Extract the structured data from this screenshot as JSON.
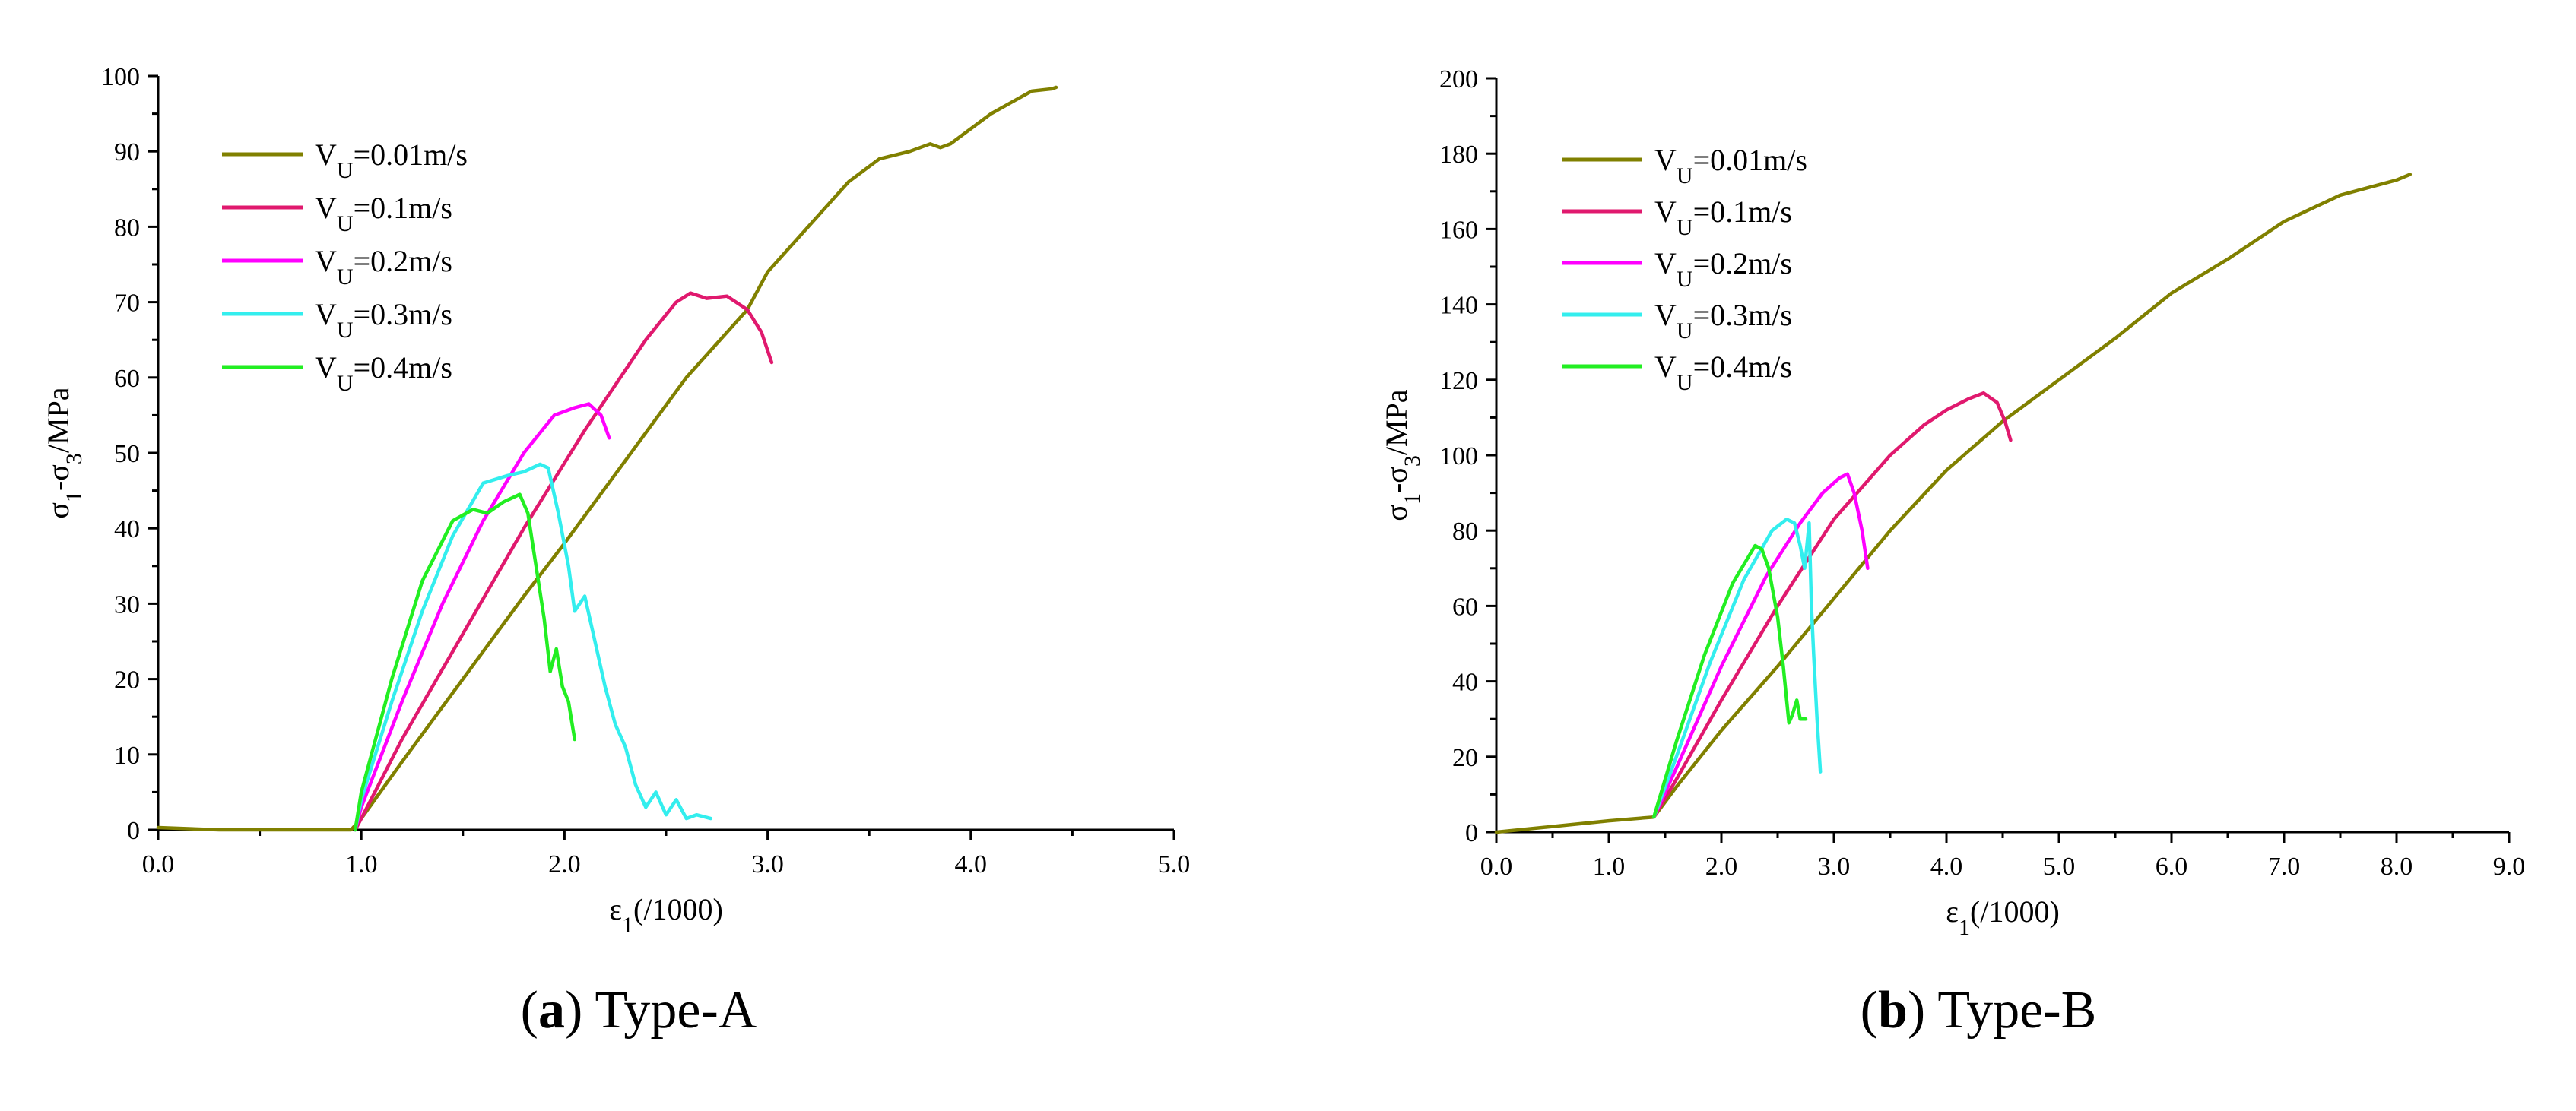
{
  "chart_data": [
    {
      "type": "line",
      "panel_label": "a",
      "panel_title": "Type-A",
      "xlabel_main": "ε",
      "xlabel_sub": "1",
      "xlabel_rest": "(/1000)",
      "ylabel_parts": [
        "σ",
        "1",
        "-σ",
        "3",
        "/MPa"
      ],
      "xlim": [
        0,
        5
      ],
      "ylim": [
        0,
        100
      ],
      "xticks": [
        0,
        1,
        2,
        3,
        4,
        5
      ],
      "xtick_labels": [
        "0.0",
        "1.0",
        "2.0",
        "3.0",
        "4.0",
        "5.0"
      ],
      "yticks": [
        0,
        10,
        20,
        30,
        40,
        50,
        60,
        70,
        80,
        90,
        100
      ],
      "ytick_labels": [
        "0",
        "10",
        "20",
        "30",
        "40",
        "50",
        "60",
        "70",
        "80",
        "90",
        "100"
      ],
      "legend_position": "top-left",
      "series": [
        {
          "name": "V",
          "sub": "U",
          "value": "=0.01m/s",
          "color": "#808000",
          "x": [
            0.0,
            0.3,
            0.6,
            0.95,
            1.0,
            1.2,
            1.5,
            1.8,
            2.0,
            2.3,
            2.6,
            2.9,
            3.0,
            3.2,
            3.4,
            3.55,
            3.7,
            3.8,
            3.85,
            3.9,
            4.0,
            4.1,
            4.2,
            4.3,
            4.4,
            4.42
          ],
          "y": [
            0.3,
            0,
            0,
            0,
            1.5,
            9,
            20,
            31,
            38,
            49,
            60,
            69,
            74,
            80,
            86,
            89,
            90,
            91,
            90.5,
            91,
            93,
            95,
            96.5,
            98,
            98.3,
            98.5
          ]
        },
        {
          "name": "V",
          "sub": "U",
          "value": "=0.1m/s",
          "color": "#E0196E",
          "x": [
            0.97,
            1.0,
            1.2,
            1.5,
            1.8,
            2.1,
            2.4,
            2.55,
            2.62,
            2.7,
            2.8,
            2.9,
            2.97,
            3.02
          ],
          "y": [
            0,
            1.5,
            12,
            26,
            40,
            53,
            65,
            70,
            71.2,
            70.5,
            70.8,
            69,
            66,
            62
          ]
        },
        {
          "name": "V",
          "sub": "U",
          "value": "=0.2m/s",
          "color": "#FF00FF",
          "x": [
            0.97,
            1.0,
            1.2,
            1.4,
            1.6,
            1.8,
            1.95,
            2.05,
            2.12,
            2.18,
            2.22
          ],
          "y": [
            0,
            3,
            17,
            30,
            41,
            50,
            55,
            56,
            56.5,
            55,
            52
          ]
        },
        {
          "name": "V",
          "sub": "U",
          "value": "=0.3m/s",
          "color": "#33EEEE",
          "x": [
            0.97,
            1.0,
            1.15,
            1.3,
            1.45,
            1.6,
            1.72,
            1.8,
            1.88,
            1.92,
            1.97,
            2.02,
            2.05,
            2.1,
            2.15,
            2.2,
            2.25,
            2.3,
            2.35,
            2.4,
            2.45,
            2.5,
            2.55,
            2.6,
            2.65,
            2.72
          ],
          "y": [
            0,
            4,
            17,
            29,
            39,
            46,
            47,
            47.5,
            48.5,
            48,
            42,
            35,
            29,
            31,
            25,
            19,
            14,
            11,
            6,
            3,
            5,
            2,
            4,
            1.5,
            2,
            1.5
          ]
        },
        {
          "name": "V",
          "sub": "U",
          "value": "=0.4m/s",
          "color": "#22EE22",
          "x": [
            0.97,
            1.0,
            1.15,
            1.3,
            1.45,
            1.55,
            1.62,
            1.7,
            1.78,
            1.82,
            1.86,
            1.9,
            1.93,
            1.96,
            1.99,
            2.02,
            2.05
          ],
          "y": [
            0,
            5,
            20,
            33,
            41,
            42.5,
            42,
            43.5,
            44.5,
            42,
            35,
            28,
            21,
            24,
            19,
            17,
            12
          ]
        }
      ]
    },
    {
      "type": "line",
      "panel_label": "b",
      "panel_title": "Type-B",
      "xlabel_main": "ε",
      "xlabel_sub": "1",
      "xlabel_rest": "(/1000)",
      "ylabel_parts": [
        "σ",
        "1",
        "-σ",
        "3",
        "/MPa"
      ],
      "xlim": [
        0,
        9
      ],
      "ylim": [
        0,
        200
      ],
      "xticks": [
        0,
        1,
        2,
        3,
        4,
        5,
        6,
        7,
        8,
        9
      ],
      "xtick_labels": [
        "0.0",
        "1.0",
        "2.0",
        "3.0",
        "4.0",
        "5.0",
        "6.0",
        "7.0",
        "8.0",
        "9.0"
      ],
      "yticks": [
        0,
        20,
        40,
        60,
        80,
        100,
        120,
        140,
        160,
        180,
        200
      ],
      "ytick_labels": [
        "0",
        "20",
        "40",
        "60",
        "80",
        "100",
        "120",
        "140",
        "160",
        "180",
        "200"
      ],
      "legend_position": "top-left",
      "series": [
        {
          "name": "V",
          "sub": "U",
          "value": "=0.01m/s",
          "color": "#808000",
          "x": [
            0.0,
            0.5,
            1.0,
            1.4,
            1.6,
            2.0,
            2.5,
            3.0,
            3.5,
            4.0,
            4.5,
            5.0,
            5.5,
            6.0,
            6.5,
            7.0,
            7.5,
            8.0,
            8.12
          ],
          "y": [
            0,
            1.5,
            3,
            4,
            12,
            27,
            44,
            62,
            80,
            96,
            109,
            120,
            131,
            143,
            152,
            162,
            169,
            173,
            174.5
          ]
        },
        {
          "name": "V",
          "sub": "U",
          "value": "=0.1m/s",
          "color": "#E0196E",
          "x": [
            1.4,
            1.6,
            2.0,
            2.5,
            3.0,
            3.5,
            3.8,
            4.0,
            4.2,
            4.33,
            4.45,
            4.52,
            4.57
          ],
          "y": [
            4,
            14,
            35,
            60,
            83,
            100,
            108,
            112,
            115,
            116.5,
            114,
            109,
            104
          ]
        },
        {
          "name": "V",
          "sub": "U",
          "value": "=0.2m/s",
          "color": "#FF00FF",
          "x": [
            1.4,
            1.6,
            2.0,
            2.4,
            2.7,
            2.9,
            3.05,
            3.12,
            3.18,
            3.25,
            3.3
          ],
          "y": [
            4,
            17,
            44,
            68,
            82,
            90,
            94,
            95,
            90,
            80,
            70
          ]
        },
        {
          "name": "V",
          "sub": "U",
          "value": "=0.3m/s",
          "color": "#33EEEE",
          "x": [
            1.4,
            1.6,
            1.9,
            2.2,
            2.45,
            2.58,
            2.65,
            2.7,
            2.74,
            2.78,
            2.8,
            2.82,
            2.85,
            2.88
          ],
          "y": [
            4,
            20,
            45,
            67,
            80,
            83,
            82,
            76,
            70,
            82,
            60,
            47,
            30,
            16
          ]
        },
        {
          "name": "V",
          "sub": "U",
          "value": "=0.4m/s",
          "color": "#22EE22",
          "x": [
            1.4,
            1.6,
            1.85,
            2.1,
            2.3,
            2.36,
            2.42,
            2.5,
            2.55,
            2.6,
            2.63,
            2.67,
            2.7,
            2.75
          ],
          "y": [
            4,
            24,
            47,
            66,
            76,
            75,
            70,
            57,
            44,
            29,
            31,
            35,
            30,
            30
          ]
        }
      ]
    }
  ]
}
